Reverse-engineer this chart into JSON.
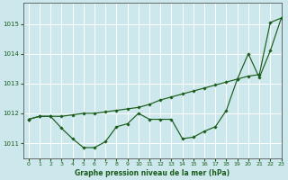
{
  "title": "Graphe pression niveau de la mer (hPa)",
  "background_color": "#cce8ed",
  "grid_color": "#ffffff",
  "line_color": "#1a5c1a",
  "marker_color": "#1a5c1a",
  "xlim": [
    -0.5,
    23
  ],
  "ylim": [
    1010.5,
    1015.7
  ],
  "yticks": [
    1011,
    1012,
    1013,
    1014,
    1015
  ],
  "xticks": [
    0,
    1,
    2,
    3,
    4,
    5,
    6,
    7,
    8,
    9,
    10,
    11,
    12,
    13,
    14,
    15,
    16,
    17,
    18,
    19,
    20,
    21,
    22,
    23
  ],
  "series1_x": [
    0,
    1,
    2,
    3,
    4,
    5,
    6,
    7,
    8,
    9,
    10,
    11,
    12,
    13,
    14,
    15,
    16,
    17,
    18,
    19,
    20,
    21,
    22,
    23
  ],
  "series1_y": [
    1011.8,
    1011.9,
    1011.9,
    1011.5,
    1011.15,
    1010.85,
    1010.85,
    1011.05,
    1011.55,
    1011.65,
    1012.0,
    1011.8,
    1011.8,
    1011.8,
    1011.15,
    1011.2,
    1011.4,
    1011.55,
    1012.1,
    1013.15,
    1014.0,
    1013.2,
    1014.1,
    1015.2
  ],
  "series2_x": [
    0,
    1,
    2,
    3,
    4,
    5,
    6,
    7,
    8,
    9,
    10,
    11,
    12,
    13,
    14,
    15,
    16,
    17,
    18,
    19,
    20,
    21,
    22,
    23
  ],
  "series2_y": [
    1011.8,
    1011.9,
    1011.9,
    1011.9,
    1011.95,
    1012.0,
    1012.0,
    1012.05,
    1012.1,
    1012.15,
    1012.2,
    1012.3,
    1012.45,
    1012.55,
    1012.65,
    1012.75,
    1012.85,
    1012.95,
    1013.05,
    1013.15,
    1013.25,
    1013.3,
    1015.05,
    1015.2
  ]
}
